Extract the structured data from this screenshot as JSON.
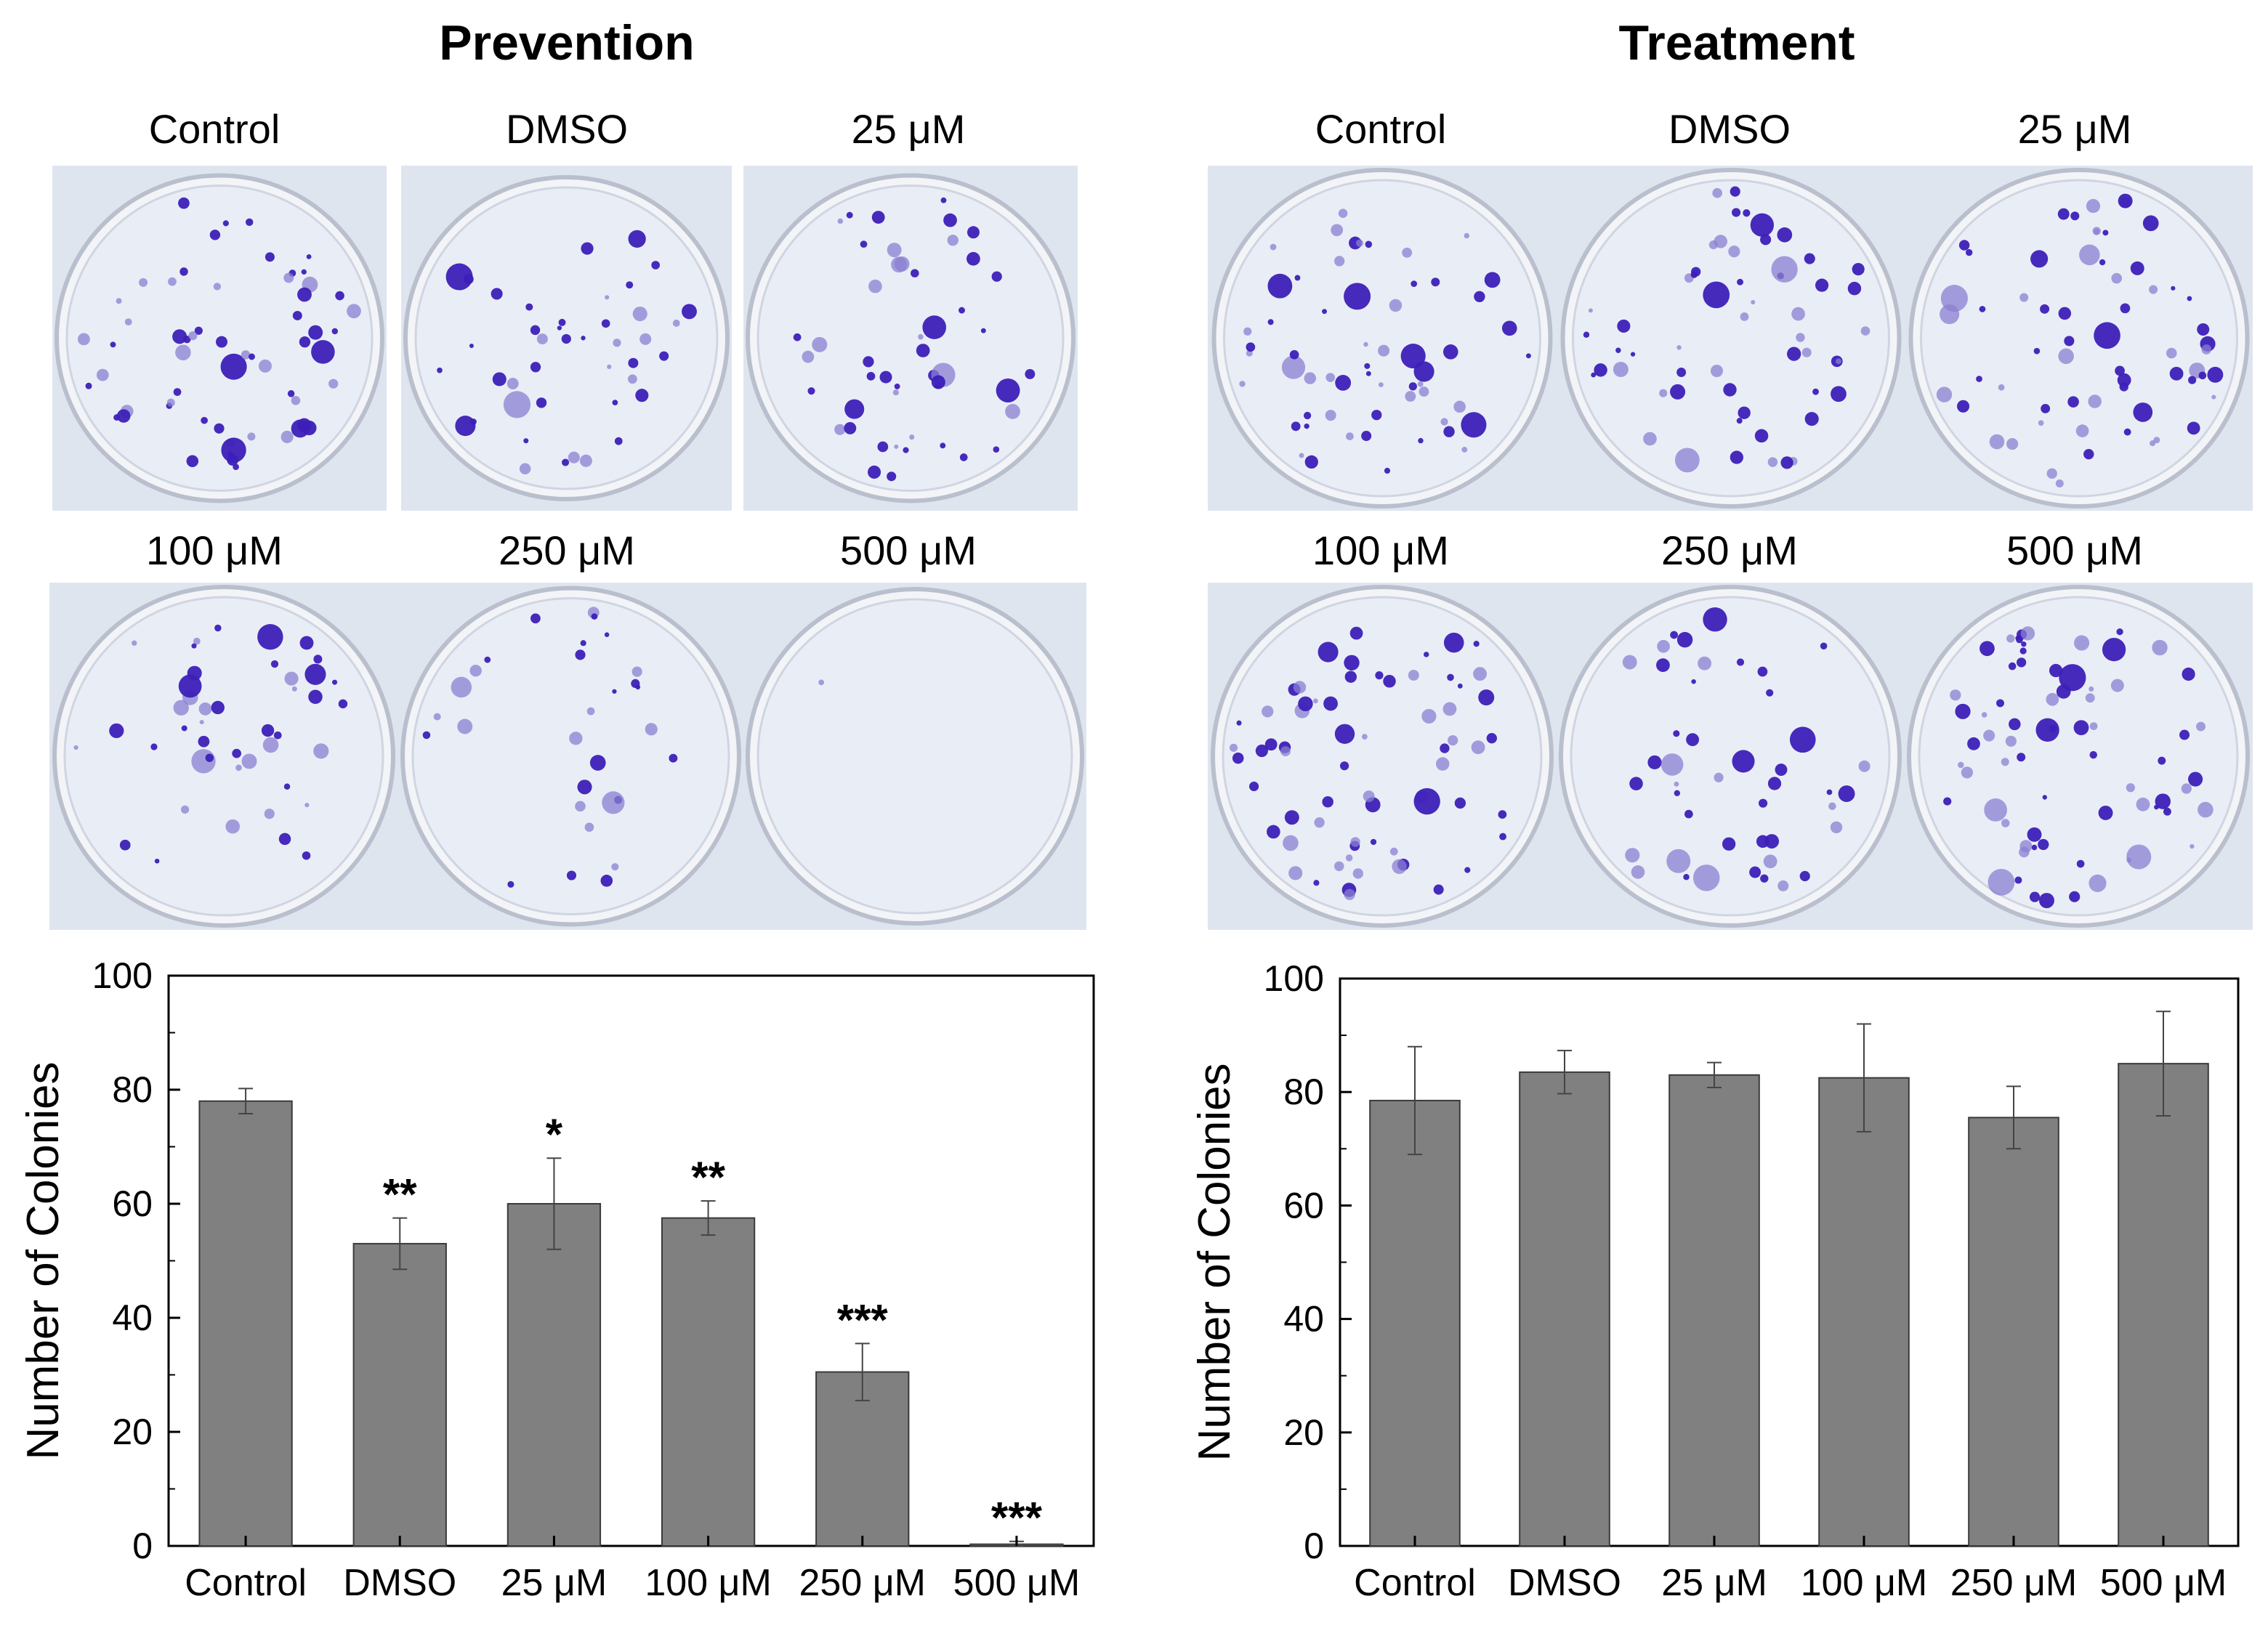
{
  "colors": {
    "bar_fill": "#808080",
    "bar_stroke": "#3a3a3a",
    "colony": "#3d1fb8",
    "colony_light": "#8a7fd1",
    "plate_bg": "#e6ebf3"
  },
  "panels": [
    {
      "title": "Prevention",
      "dishes": [
        "Control",
        "DMSO",
        "25 μM",
        "100 μM",
        "250 μM",
        "500 μM"
      ]
    },
    {
      "title": "Treatment",
      "dishes": [
        "Control",
        "DMSO",
        "25 μM",
        "100 μM",
        "250 μM",
        "500 μM"
      ]
    }
  ],
  "chart_data": [
    {
      "type": "bar",
      "title": "Prevention",
      "categories": [
        "Control",
        "DMSO",
        "25 μM",
        "100 μM",
        "250 μM",
        "500 μM"
      ],
      "values": [
        78,
        53,
        60,
        57.5,
        30.5,
        0.3
      ],
      "errors": [
        2.2,
        4.5,
        8,
        3,
        5,
        0.5
      ],
      "significance": [
        "",
        "**",
        "*",
        "**",
        "***",
        "***"
      ],
      "xlabel": "",
      "ylabel": "Number of Colonies",
      "ylim": [
        0,
        100
      ],
      "yticks": [
        "0",
        "20",
        "40",
        "60",
        "80",
        "100"
      ]
    },
    {
      "type": "bar",
      "title": "Treatment",
      "categories": [
        "Control",
        "DMSO",
        "25 μM",
        "100 μM",
        "250 μM",
        "500 μM"
      ],
      "values": [
        78.5,
        83.5,
        83,
        82.5,
        75.5,
        85
      ],
      "errors": [
        9.5,
        3.8,
        2.2,
        9.5,
        5.5,
        9.2
      ],
      "significance": [
        "",
        "",
        "",
        "",
        "",
        ""
      ],
      "xlabel": "",
      "ylabel": "Number of Colonies",
      "ylim": [
        0,
        100
      ],
      "yticks": [
        "0",
        "20",
        "40",
        "60",
        "80",
        "100"
      ]
    }
  ]
}
